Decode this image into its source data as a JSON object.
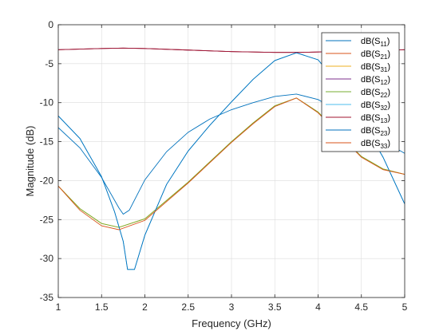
{
  "chart_data": {
    "type": "line",
    "xlabel": "Frequency (GHz)",
    "ylabel": "Magnitude (dB)",
    "xlim": [
      1,
      5
    ],
    "ylim": [
      -35,
      0
    ],
    "xticks": [
      1,
      1.5,
      2,
      2.5,
      3,
      3.5,
      4,
      4.5,
      5
    ],
    "xtick_labels": [
      "1",
      "1.5",
      "2",
      "2.5",
      "3",
      "3.5",
      "4",
      "4.5",
      "5"
    ],
    "yticks": [
      0,
      -5,
      -10,
      -15,
      -20,
      -25,
      -30,
      -35
    ],
    "ytick_labels": [
      "0",
      "-5",
      "-10",
      "-15",
      "-20",
      "-25",
      "-30",
      "-35"
    ],
    "grid": true,
    "legend_position": "top-right",
    "series": [
      {
        "name": "dB(S11)",
        "legend_main": "dB(S",
        "legend_sub": "11",
        "color": "#0072BD",
        "x": [
          1.0,
          1.25,
          1.5,
          1.7,
          1.75,
          1.82,
          2.0,
          2.25,
          2.5,
          2.75,
          3.0,
          3.25,
          3.5,
          3.75,
          4.0,
          4.25,
          4.5,
          4.75,
          5.0
        ],
        "y": [
          -13.2,
          -15.8,
          -19.6,
          -23.5,
          -24.3,
          -23.8,
          -19.9,
          -16.3,
          -13.8,
          -12.1,
          -10.9,
          -10.0,
          -9.2,
          -8.9,
          -9.6,
          -11.2,
          -13.1,
          -14.9,
          -16.5
        ]
      },
      {
        "name": "dB(S21)",
        "legend_main": "dB(S",
        "legend_sub": "21",
        "color": "#D95319",
        "x": [
          1.0,
          1.5,
          1.75,
          2.0,
          2.5,
          3.0,
          3.5,
          3.75,
          4.0,
          4.5,
          5.0
        ],
        "y": [
          -3.2,
          -3.05,
          -3.0,
          -3.05,
          -3.25,
          -3.45,
          -3.55,
          -3.55,
          -3.5,
          -3.35,
          -3.2
        ]
      },
      {
        "name": "dB(S31)",
        "legend_main": "dB(S",
        "legend_sub": "31",
        "color": "#EDB120",
        "x": [
          1.0,
          1.25,
          1.5,
          1.7,
          2.0,
          2.5,
          3.0,
          3.25,
          3.5,
          3.75,
          4.0,
          4.25,
          4.5,
          4.75,
          5.0
        ],
        "y": [
          -20.7,
          -23.6,
          -25.5,
          -26.0,
          -24.9,
          -20.2,
          -15.0,
          -12.6,
          -10.4,
          -9.4,
          -11.2,
          -14.1,
          -16.9,
          -18.5,
          -19.2
        ]
      },
      {
        "name": "dB(S12)",
        "legend_main": "dB(S",
        "legend_sub": "12",
        "color": "#7E2F8E",
        "x": [
          1.0,
          1.5,
          1.75,
          2.0,
          2.5,
          3.0,
          3.5,
          3.75,
          4.0,
          4.5,
          5.0
        ],
        "y": [
          -3.2,
          -3.05,
          -3.0,
          -3.05,
          -3.25,
          -3.45,
          -3.55,
          -3.55,
          -3.5,
          -3.35,
          -3.2
        ]
      },
      {
        "name": "dB(S22)",
        "legend_main": "dB(S",
        "legend_sub": "22",
        "color": "#77AC30",
        "x": [
          1.0,
          1.25,
          1.5,
          1.7,
          2.0,
          2.5,
          3.0,
          3.25,
          3.5,
          3.75,
          4.0,
          4.25,
          4.5,
          4.75,
          5.0
        ],
        "y": [
          -20.7,
          -23.6,
          -25.5,
          -26.0,
          -24.9,
          -20.2,
          -15.0,
          -12.6,
          -10.4,
          -9.4,
          -11.2,
          -14.1,
          -16.9,
          -18.5,
          -19.2
        ]
      },
      {
        "name": "dB(S32)",
        "legend_main": "dB(S",
        "legend_sub": "32",
        "color": "#4DBEEE",
        "x": [
          1.0,
          1.25,
          1.5,
          1.65,
          1.75,
          1.8,
          1.88,
          2.0,
          2.25,
          2.5,
          2.75,
          3.0,
          3.25,
          3.5,
          3.75,
          4.0,
          4.25,
          4.5,
          4.75,
          5.0
        ],
        "y": [
          -11.7,
          -14.6,
          -19.5,
          -24.0,
          -27.8,
          -31.4,
          -31.4,
          -27.0,
          -20.5,
          -16.2,
          -12.9,
          -9.9,
          -7.0,
          -4.6,
          -3.6,
          -4.5,
          -7.8,
          -12.2,
          -17.0,
          -23.0
        ]
      },
      {
        "name": "dB(S13)",
        "legend_main": "dB(S",
        "legend_sub": "13",
        "color": "#A2142F",
        "x": [
          1.0,
          1.5,
          1.75,
          2.0,
          2.5,
          3.0,
          3.5,
          3.75,
          4.0,
          4.5,
          5.0
        ],
        "y": [
          -3.2,
          -3.05,
          -3.0,
          -3.05,
          -3.25,
          -3.45,
          -3.55,
          -3.55,
          -3.5,
          -3.35,
          -3.2
        ]
      },
      {
        "name": "dB(S23)",
        "legend_main": "dB(S",
        "legend_sub": "23",
        "color": "#0072BD",
        "x": [
          1.0,
          1.25,
          1.5,
          1.65,
          1.75,
          1.8,
          1.88,
          2.0,
          2.25,
          2.5,
          2.75,
          3.0,
          3.25,
          3.5,
          3.75,
          4.0,
          4.25,
          4.5,
          4.75,
          5.0
        ],
        "y": [
          -11.7,
          -14.6,
          -19.5,
          -24.0,
          -27.8,
          -31.4,
          -31.4,
          -27.0,
          -20.5,
          -16.2,
          -12.9,
          -9.9,
          -7.0,
          -4.6,
          -3.6,
          -4.5,
          -7.8,
          -12.2,
          -17.0,
          -23.0
        ]
      },
      {
        "name": "dB(S33)",
        "legend_main": "dB(S",
        "legend_sub": "33",
        "color": "#D95319",
        "x": [
          1.0,
          1.25,
          1.5,
          1.7,
          2.0,
          2.5,
          3.0,
          3.25,
          3.5,
          3.75,
          4.0,
          4.25,
          4.5,
          4.75,
          5.0
        ],
        "y": [
          -20.7,
          -23.8,
          -25.8,
          -26.3,
          -25.1,
          -20.3,
          -15.1,
          -12.7,
          -10.5,
          -9.4,
          -11.3,
          -14.2,
          -17.0,
          -18.6,
          -19.2
        ]
      }
    ]
  }
}
